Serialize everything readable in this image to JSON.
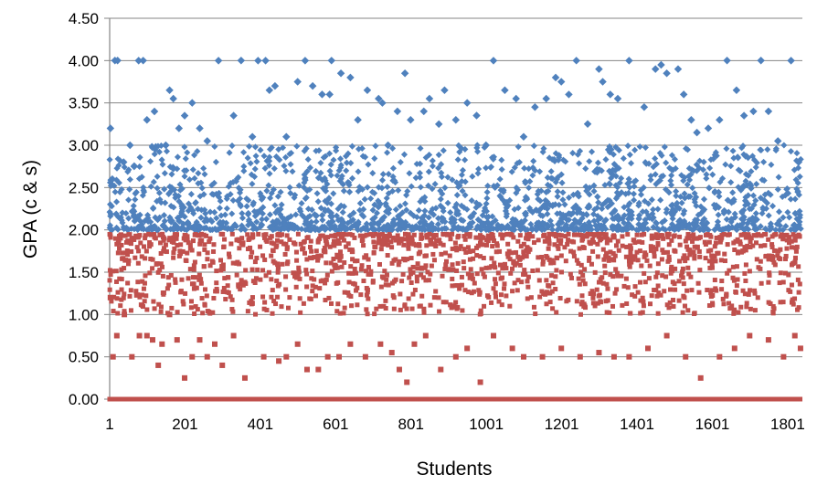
{
  "chart_data": {
    "type": "scatter",
    "title": "",
    "xlabel": "Students",
    "ylabel": "GPA (c & s)",
    "xlim": [
      1,
      1840
    ],
    "ylim": [
      0,
      4.5
    ],
    "x_ticks": [
      "1",
      "201",
      "401",
      "601",
      "801",
      "1001",
      "1201",
      "1401",
      "1601",
      "1801"
    ],
    "y_ticks": [
      "0.00",
      "0.50",
      "1.00",
      "1.50",
      "2.00",
      "2.50",
      "3.00",
      "3.50",
      "4.00",
      "4.50"
    ],
    "grid": "horizontal",
    "legend": "none",
    "series": [
      {
        "color": "#4f81bd",
        "marker": "diamond",
        "values": [
          [
            3,
            3.2
          ],
          [
            8,
            2.6
          ],
          [
            15,
            4.0
          ],
          [
            22,
            4.0
          ],
          [
            38,
            2.8
          ],
          [
            55,
            3.0
          ],
          [
            66,
            2.75
          ],
          [
            78,
            4.0
          ],
          [
            90,
            4.0
          ],
          [
            100,
            3.3
          ],
          [
            120,
            3.4
          ],
          [
            150,
            3.0
          ],
          [
            160,
            3.65
          ],
          [
            170,
            3.55
          ],
          [
            185,
            3.2
          ],
          [
            200,
            3.35
          ],
          [
            220,
            3.5
          ],
          [
            240,
            3.2
          ],
          [
            260,
            3.05
          ],
          [
            290,
            4.0
          ],
          [
            330,
            3.35
          ],
          [
            350,
            4.0
          ],
          [
            380,
            3.1
          ],
          [
            395,
            4.0
          ],
          [
            415,
            4.0
          ],
          [
            425,
            3.65
          ],
          [
            440,
            3.7
          ],
          [
            470,
            3.1
          ],
          [
            500,
            3.75
          ],
          [
            520,
            4.0
          ],
          [
            540,
            3.7
          ],
          [
            565,
            3.6
          ],
          [
            585,
            3.6
          ],
          [
            590,
            4.0
          ],
          [
            615,
            3.85
          ],
          [
            640,
            3.8
          ],
          [
            660,
            3.3
          ],
          [
            685,
            3.65
          ],
          [
            715,
            3.55
          ],
          [
            725,
            3.5
          ],
          [
            740,
            3.0
          ],
          [
            765,
            3.4
          ],
          [
            785,
            3.85
          ],
          [
            800,
            3.3
          ],
          [
            835,
            3.4
          ],
          [
            850,
            3.55
          ],
          [
            875,
            3.25
          ],
          [
            890,
            3.65
          ],
          [
            920,
            3.3
          ],
          [
            950,
            3.5
          ],
          [
            975,
            3.35
          ],
          [
            1000,
            3.0
          ],
          [
            1020,
            4.0
          ],
          [
            1050,
            3.65
          ],
          [
            1080,
            3.55
          ],
          [
            1100,
            3.1
          ],
          [
            1130,
            3.45
          ],
          [
            1160,
            3.55
          ],
          [
            1185,
            3.8
          ],
          [
            1200,
            3.75
          ],
          [
            1220,
            3.6
          ],
          [
            1240,
            4.0
          ],
          [
            1270,
            3.25
          ],
          [
            1300,
            3.9
          ],
          [
            1310,
            3.75
          ],
          [
            1330,
            3.6
          ],
          [
            1350,
            3.55
          ],
          [
            1380,
            4.0
          ],
          [
            1420,
            3.45
          ],
          [
            1450,
            3.9
          ],
          [
            1465,
            3.95
          ],
          [
            1480,
            3.85
          ],
          [
            1510,
            3.9
          ],
          [
            1525,
            3.6
          ],
          [
            1545,
            3.3
          ],
          [
            1560,
            3.15
          ],
          [
            1590,
            3.2
          ],
          [
            1620,
            3.3
          ],
          [
            1640,
            4.0
          ],
          [
            1665,
            3.65
          ],
          [
            1685,
            3.35
          ],
          [
            1710,
            3.4
          ],
          [
            1730,
            4.0
          ],
          [
            1750,
            3.4
          ],
          [
            1775,
            3.05
          ],
          [
            1810,
            4.0
          ],
          [
            1830,
            2.8
          ]
        ]
      },
      {
        "color": "#c0504d",
        "marker": "square",
        "values": [
          [
            3,
            1.2
          ],
          [
            10,
            0.5
          ],
          [
            20,
            0.75
          ],
          [
            40,
            1.0
          ],
          [
            60,
            0.5
          ],
          [
            80,
            0.75
          ],
          [
            100,
            0.75
          ],
          [
            115,
            0.7
          ],
          [
            130,
            0.4
          ],
          [
            140,
            0.65
          ],
          [
            160,
            1.0
          ],
          [
            180,
            0.7
          ],
          [
            200,
            0.25
          ],
          [
            220,
            0.5
          ],
          [
            240,
            0.7
          ],
          [
            260,
            0.5
          ],
          [
            280,
            0.65
          ],
          [
            300,
            0.4
          ],
          [
            330,
            0.75
          ],
          [
            360,
            0.25
          ],
          [
            410,
            0.5
          ],
          [
            450,
            0.45
          ],
          [
            470,
            0.5
          ],
          [
            500,
            0.65
          ],
          [
            525,
            0.35
          ],
          [
            555,
            0.35
          ],
          [
            580,
            0.5
          ],
          [
            610,
            0.5
          ],
          [
            640,
            0.65
          ],
          [
            680,
            0.5
          ],
          [
            720,
            0.65
          ],
          [
            750,
            0.55
          ],
          [
            770,
            0.35
          ],
          [
            790,
            0.2
          ],
          [
            810,
            0.65
          ],
          [
            840,
            0.75
          ],
          [
            880,
            0.35
          ],
          [
            920,
            0.5
          ],
          [
            950,
            0.6
          ],
          [
            985,
            0.2
          ],
          [
            1020,
            0.75
          ],
          [
            1070,
            0.6
          ],
          [
            1100,
            0.5
          ],
          [
            1150,
            0.5
          ],
          [
            1200,
            0.6
          ],
          [
            1250,
            0.5
          ],
          [
            1300,
            0.55
          ],
          [
            1340,
            0.5
          ],
          [
            1380,
            0.5
          ],
          [
            1430,
            0.6
          ],
          [
            1480,
            0.75
          ],
          [
            1530,
            0.5
          ],
          [
            1570,
            0.25
          ],
          [
            1620,
            0.5
          ],
          [
            1660,
            0.6
          ],
          [
            1700,
            0.75
          ],
          [
            1750,
            0.7
          ],
          [
            1790,
            0.5
          ],
          [
            1820,
            0.75
          ],
          [
            1835,
            0.6
          ]
        ]
      }
    ]
  }
}
